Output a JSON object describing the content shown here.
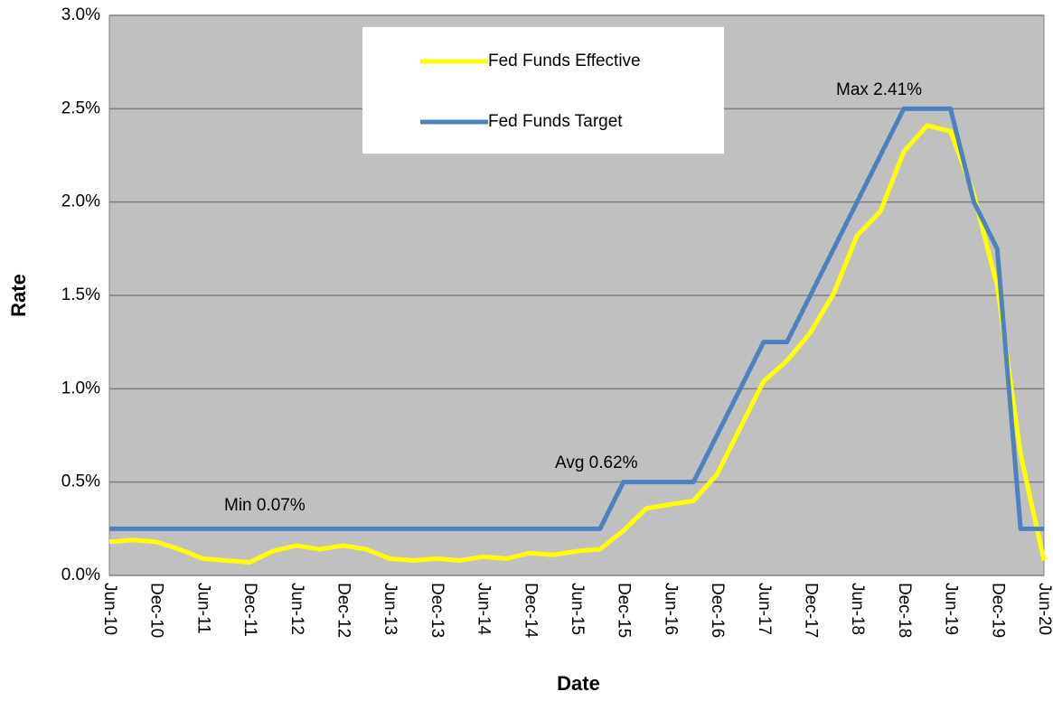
{
  "chart_data": {
    "type": "line",
    "y_label": "Rate",
    "x_label": "Date",
    "categories": [
      "Jun-10",
      null,
      "Dec-10",
      null,
      "Jun-11",
      null,
      "Dec-11",
      null,
      "Jun-12",
      null,
      "Dec-12",
      null,
      "Jun-13",
      null,
      "Dec-13",
      null,
      "Jun-14",
      null,
      "Dec-14",
      null,
      "Jun-15",
      null,
      "Dec-15",
      null,
      "Jun-16",
      null,
      "Dec-16",
      null,
      "Jun-17",
      null,
      "Dec-17",
      null,
      "Jun-18",
      null,
      "Dec-18",
      null,
      "Jun-19",
      null,
      "Dec-19",
      null,
      "Jun-20"
    ],
    "series": [
      {
        "name": "Fed Funds Effective",
        "color": "#ffff00",
        "values": [
          0.18,
          0.19,
          0.18,
          0.14,
          0.09,
          0.08,
          0.07,
          0.13,
          0.16,
          0.14,
          0.16,
          0.14,
          0.09,
          0.08,
          0.09,
          0.08,
          0.1,
          0.09,
          0.12,
          0.11,
          0.13,
          0.14,
          0.24,
          0.36,
          0.38,
          0.4,
          0.54,
          0.79,
          1.04,
          1.15,
          1.3,
          1.51,
          1.82,
          1.95,
          2.27,
          2.41,
          2.38,
          2.04,
          1.55,
          0.65,
          0.08
        ]
      },
      {
        "name": "Fed Funds Target",
        "color": "#4f81bd",
        "values": [
          0.25,
          0.25,
          0.25,
          0.25,
          0.25,
          0.25,
          0.25,
          0.25,
          0.25,
          0.25,
          0.25,
          0.25,
          0.25,
          0.25,
          0.25,
          0.25,
          0.25,
          0.25,
          0.25,
          0.25,
          0.25,
          0.25,
          0.5,
          0.5,
          0.5,
          0.5,
          0.75,
          1.0,
          1.25,
          1.25,
          1.5,
          1.75,
          2.0,
          2.25,
          2.5,
          2.5,
          2.5,
          2.0,
          1.75,
          0.25,
          0.25
        ]
      }
    ],
    "annotations": [
      "Min  0.07%",
      "Avg 0.62%",
      "Max  2.41%"
    ],
    "ylim": [
      0,
      3
    ],
    "yticks": [
      {
        "value": 0,
        "label": "0.0%"
      },
      {
        "value": 0.5,
        "label": "0.5%"
      },
      {
        "value": 1,
        "label": "1.0%"
      },
      {
        "value": 1.5,
        "label": "1.5%"
      },
      {
        "value": 2,
        "label": "2.0%"
      },
      {
        "value": 2.5,
        "label": "2.5%"
      },
      {
        "value": 3,
        "label": "3.0%"
      }
    ],
    "grid": true,
    "legend": "top"
  }
}
